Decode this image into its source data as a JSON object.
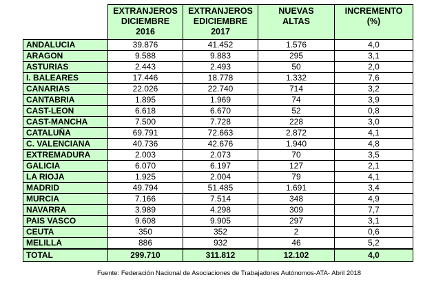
{
  "headers": {
    "col1_line1": "EXTRANJEROS",
    "col1_line2": "DICIEMBRE",
    "col1_line3": "2016",
    "col2_line1": "EXTRANJEROS",
    "col2_line2": "EDICIEMBRE",
    "col2_line3": "2017",
    "col3_line1": "NUEVAS",
    "col3_line2": "ALTAS",
    "col4_line1": "INCREMENTO",
    "col4_line2": "(%)"
  },
  "rows": [
    {
      "region": "ANDALUCIA",
      "dic2016": "39.876",
      "dic2017": "41.452",
      "altas": "1.576",
      "incremento": "4,0"
    },
    {
      "region": "ARAGON",
      "dic2016": "9.588",
      "dic2017": "9.883",
      "altas": "295",
      "incremento": "3,1"
    },
    {
      "region": "ASTURIAS",
      "dic2016": "2.443",
      "dic2017": "2.493",
      "altas": "50",
      "incremento": "2,0"
    },
    {
      "region": "I. BALEARES",
      "dic2016": "17.446",
      "dic2017": "18.778",
      "altas": "1.332",
      "incremento": "7,6"
    },
    {
      "region": "CANARIAS",
      "dic2016": "22.026",
      "dic2017": "22.740",
      "altas": "714",
      "incremento": "3,2"
    },
    {
      "region": "CANTABRIA",
      "dic2016": "1.895",
      "dic2017": "1.969",
      "altas": "74",
      "incremento": "3,9"
    },
    {
      "region": "CAST-LEON",
      "dic2016": "6.618",
      "dic2017": "6.670",
      "altas": "52",
      "incremento": "0,8"
    },
    {
      "region": "CAST-MANCHA",
      "dic2016": "7.500",
      "dic2017": "7.728",
      "altas": "228",
      "incremento": "3,0"
    },
    {
      "region": "CATALUÑA",
      "dic2016": "69.791",
      "dic2017": "72.663",
      "altas": "2.872",
      "incremento": "4,1"
    },
    {
      "region": "C. VALENCIANA",
      "dic2016": "40.736",
      "dic2017": "42.676",
      "altas": "1.940",
      "incremento": "4,8"
    },
    {
      "region": "EXTREMADURA",
      "dic2016": "2.003",
      "dic2017": "2.073",
      "altas": "70",
      "incremento": "3,5"
    },
    {
      "region": "GALICIA",
      "dic2016": "6.070",
      "dic2017": "6.197",
      "altas": "127",
      "incremento": "2,1"
    },
    {
      "region": "LA RIOJA",
      "dic2016": "1.925",
      "dic2017": "2.004",
      "altas": "79",
      "incremento": "4,1"
    },
    {
      "region": "MADRID",
      "dic2016": "49.794",
      "dic2017": "51.485",
      "altas": "1.691",
      "incremento": "3,4"
    },
    {
      "region": "MURCIA",
      "dic2016": "7.166",
      "dic2017": "7.514",
      "altas": "348",
      "incremento": "4,9"
    },
    {
      "region": "NAVARRA",
      "dic2016": "3.989",
      "dic2017": "4.298",
      "altas": "309",
      "incremento": "7,7"
    },
    {
      "region": "PAIS VASCO",
      "dic2016": "9.608",
      "dic2017": "9.905",
      "altas": "297",
      "incremento": "3,1"
    },
    {
      "region": "CEUTA",
      "dic2016": "350",
      "dic2017": "352",
      "altas": "2",
      "incremento": "0,6"
    },
    {
      "region": "MELILLA",
      "dic2016": "886",
      "dic2017": "932",
      "altas": "46",
      "incremento": "5,2"
    }
  ],
  "total": {
    "label": "TOTAL",
    "dic2016": "299.710",
    "dic2017": "311.812",
    "altas": "12.102",
    "incremento": "4,0"
  },
  "source": "Fuente: Federación Nacional de Asociaciones de Trabajadores Autónomos-ATA- Abril 2018",
  "colors": {
    "header_bg": "#ccffcc",
    "border": "#000000"
  }
}
